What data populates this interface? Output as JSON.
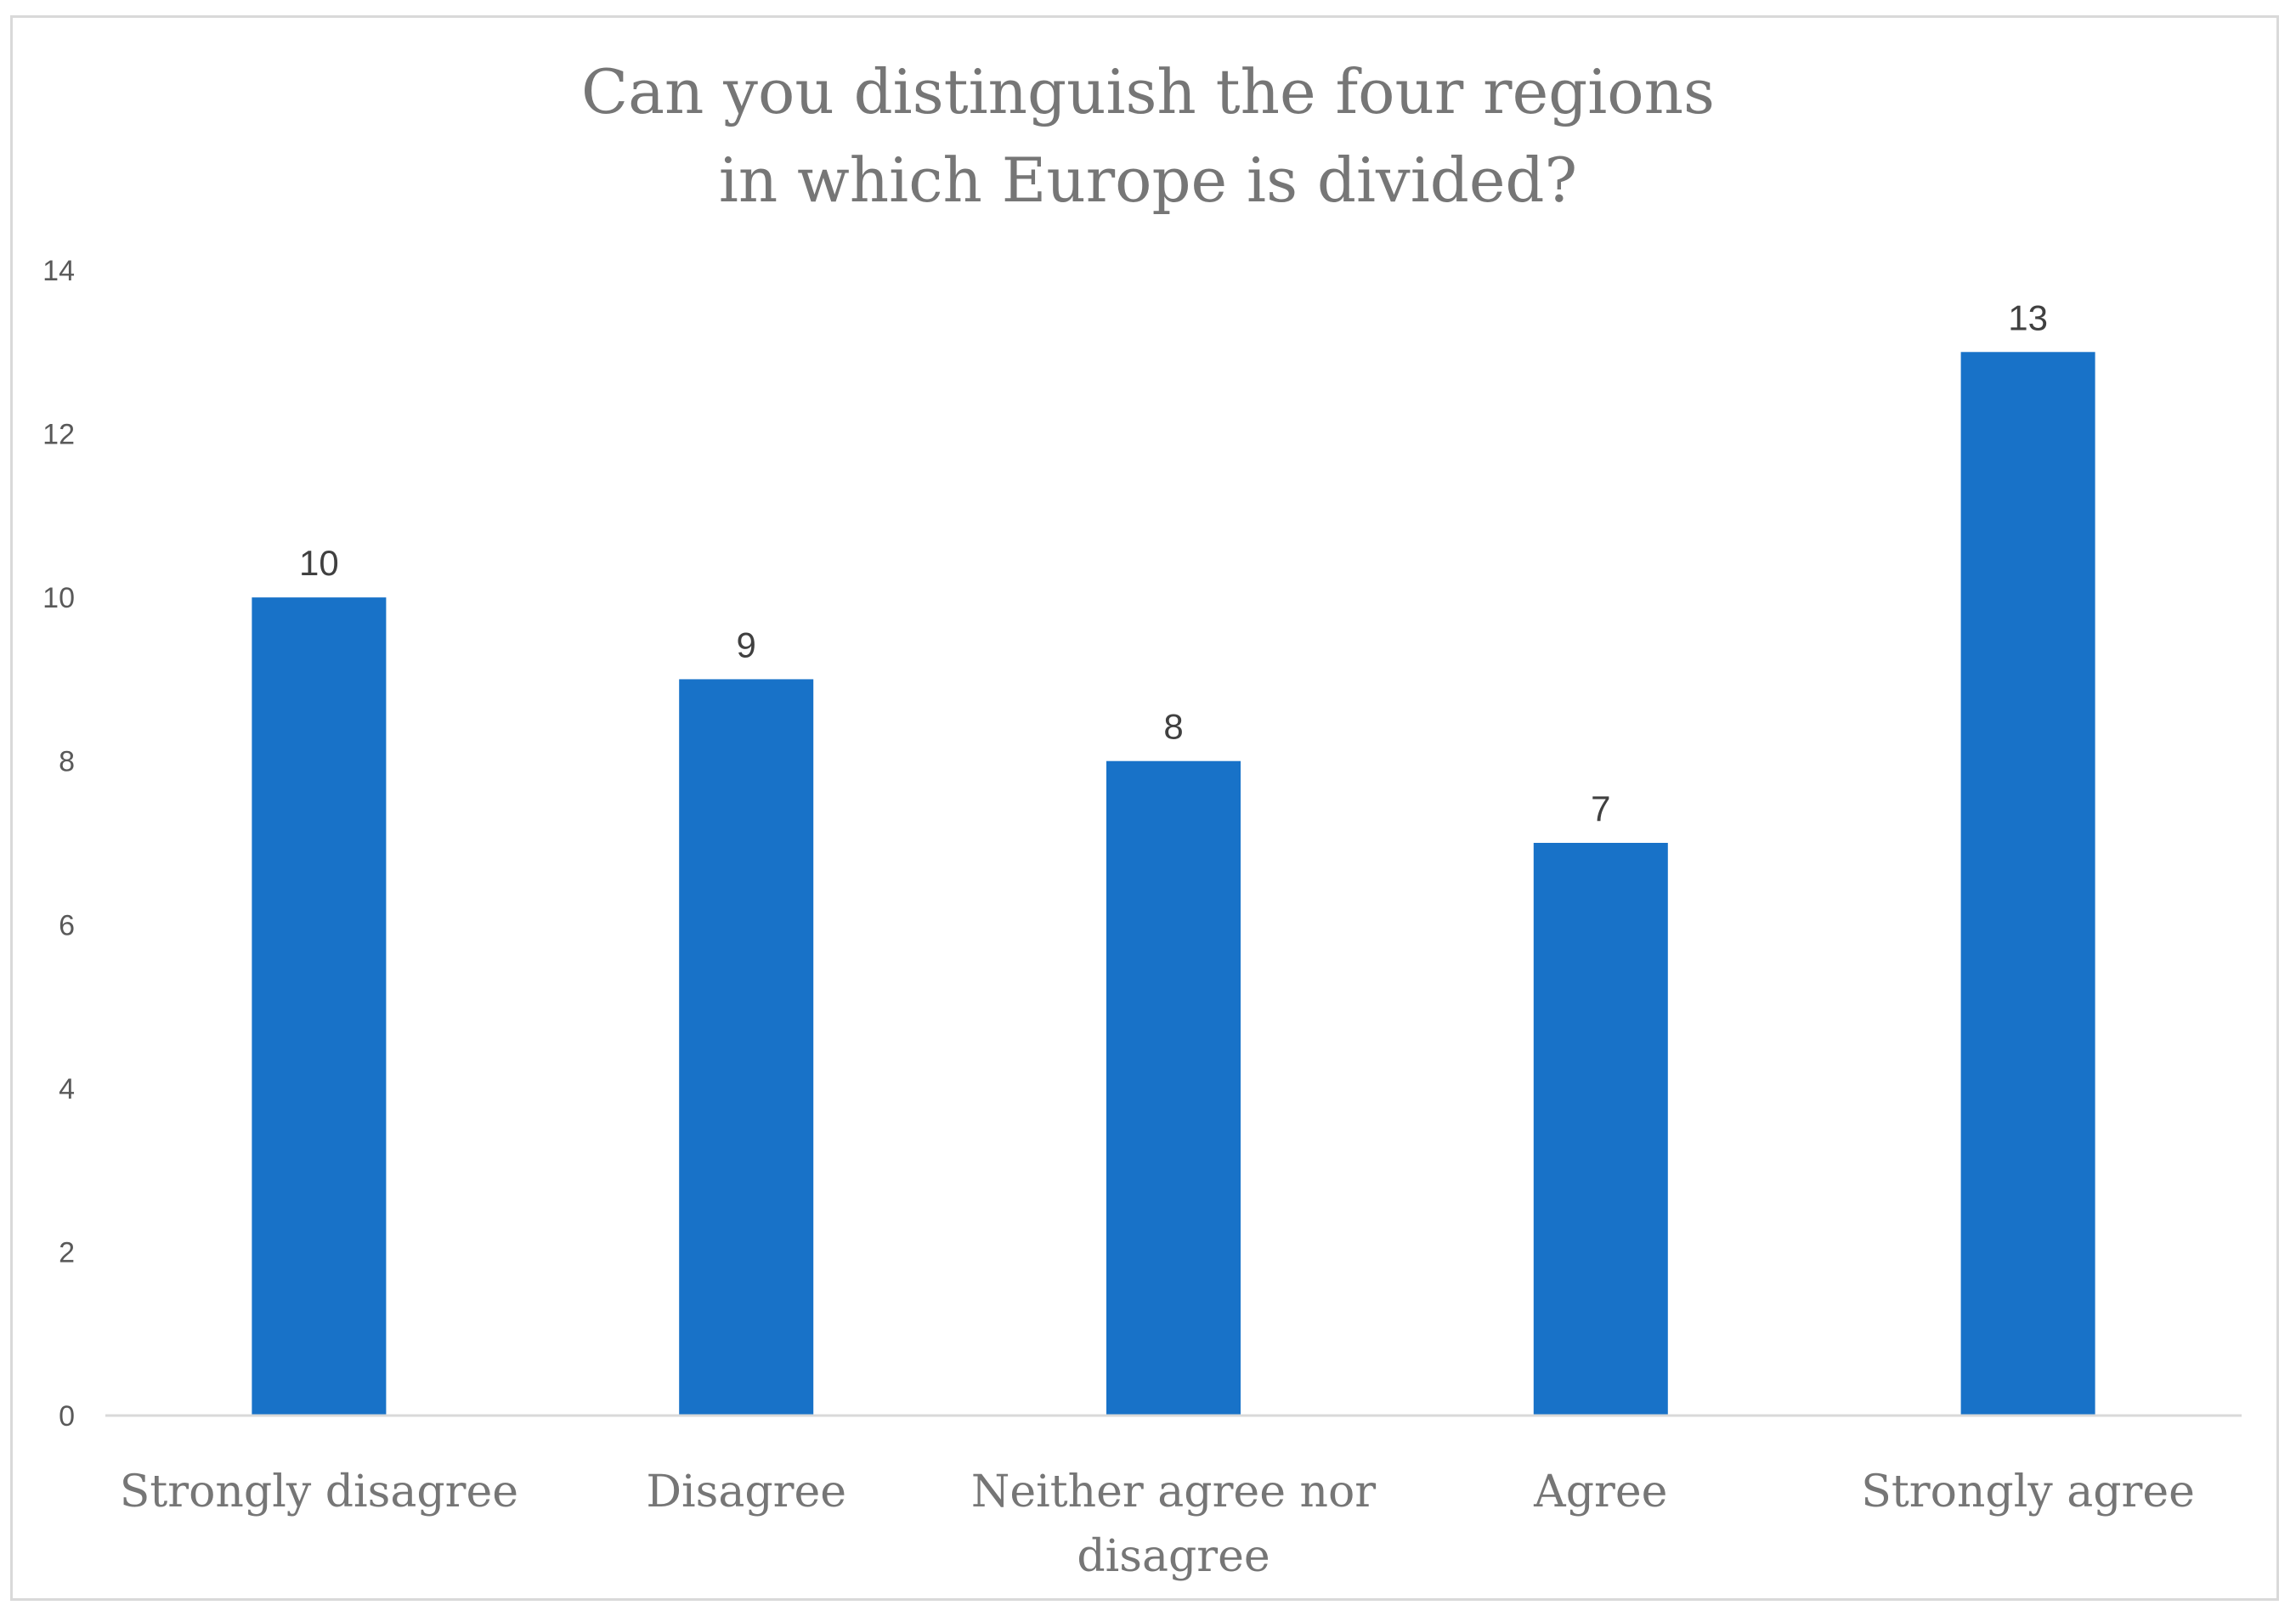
{
  "chart_data": {
    "type": "bar",
    "title_lines": [
      "Can you distinguish the four regions",
      "in which Europe is divided?"
    ],
    "categories": [
      [
        "Strongly disagree"
      ],
      [
        "Disagree"
      ],
      [
        "Neither agree nor",
        "disagree"
      ],
      [
        "Agree"
      ],
      [
        "Strongly agree"
      ]
    ],
    "values": [
      10,
      9,
      8,
      7,
      13
    ],
    "ylim": [
      0,
      14
    ],
    "yticks": [
      "0",
      "2",
      "4",
      "6",
      "8",
      "10",
      "12",
      "14"
    ],
    "grid": false,
    "legend": "none",
    "data_labels": true,
    "bar_color": "#1872c8",
    "axis_color": "#d9d9d9"
  }
}
